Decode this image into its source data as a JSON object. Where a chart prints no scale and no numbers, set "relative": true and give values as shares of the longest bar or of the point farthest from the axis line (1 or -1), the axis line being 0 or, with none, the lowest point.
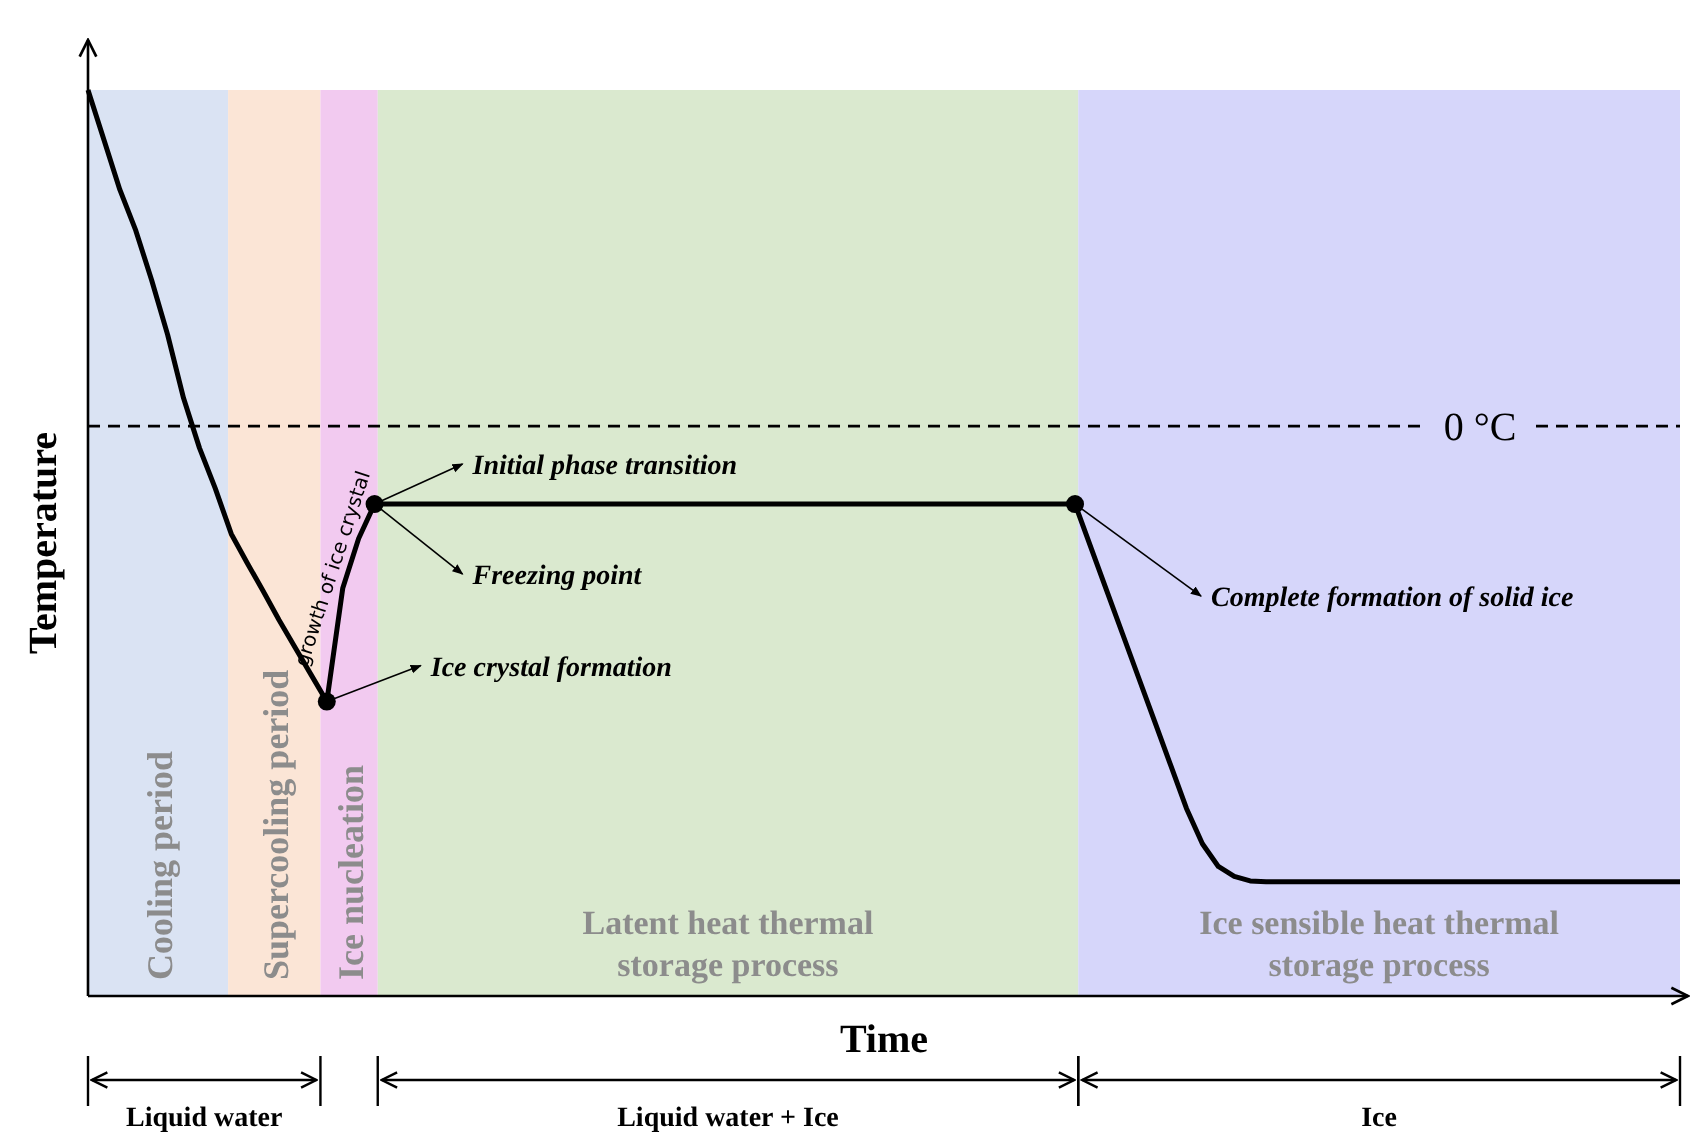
{
  "chart_data": {
    "type": "line",
    "relative": true,
    "xlabel": "Time",
    "ylabel": "Temperature",
    "categories": [
      null,
      null,
      null,
      null,
      null,
      null,
      null,
      null,
      null,
      null,
      null,
      null,
      null,
      null,
      null,
      null,
      null,
      null,
      null,
      null,
      null,
      null,
      null,
      null,
      null,
      null,
      null,
      null,
      null,
      null,
      null,
      null,
      null,
      null,
      null,
      null,
      null,
      null,
      null,
      null,
      null,
      null,
      null,
      null,
      null,
      null,
      null,
      null,
      null,
      null,
      null,
      null,
      null,
      null,
      null,
      null,
      null,
      null,
      null,
      null,
      null,
      null,
      null,
      null,
      null,
      null,
      null,
      null,
      null,
      null,
      null,
      null,
      null,
      null,
      null,
      null,
      null,
      null,
      null,
      null,
      null,
      null,
      null,
      null,
      null,
      null,
      null,
      null,
      null,
      null,
      null,
      null,
      null,
      null,
      null,
      null,
      null,
      null,
      null,
      null,
      null
    ],
    "series": [
      {
        "color": "#000000",
        "values": [
          1.0,
          0.945,
          0.89,
          0.845,
          0.79,
          0.73,
          0.66,
          0.605,
          0.56,
          0.51,
          0.478,
          0.447,
          0.415,
          0.385,
          0.355,
          0.325,
          0.45,
          0.505,
          0.543,
          0.543,
          0.543,
          0.543,
          0.543,
          0.543,
          0.543,
          0.543,
          0.543,
          0.543,
          0.543,
          0.543,
          0.543,
          0.543,
          0.543,
          0.543,
          0.543,
          0.543,
          0.543,
          0.543,
          0.543,
          0.543,
          0.543,
          0.543,
          0.543,
          0.543,
          0.543,
          0.543,
          0.543,
          0.543,
          0.543,
          0.543,
          0.543,
          0.543,
          0.543,
          0.543,
          0.543,
          0.543,
          0.543,
          0.543,
          0.543,
          0.543,
          0.543,
          0.543,
          0.543,
          0.495,
          0.447,
          0.399,
          0.351,
          0.303,
          0.255,
          0.207,
          0.168,
          0.143,
          0.132,
          0.127,
          0.126,
          0.126,
          0.126,
          0.126,
          0.126,
          0.126,
          0.126,
          0.126,
          0.126,
          0.126,
          0.126,
          0.126,
          0.126,
          0.126,
          0.126,
          0.126,
          0.126,
          0.126,
          0.126,
          0.126,
          0.126,
          0.126,
          0.126,
          0.126,
          0.126,
          0.126,
          0.126
        ]
      }
    ],
    "ref_lines": [
      {
        "axis": "y",
        "value": 0.629,
        "label": "0 °C",
        "line_style": "dashed"
      }
    ],
    "annotations": [
      "Initial phase transition",
      "Freezing point",
      "Ice crystal formation",
      "Complete formation of solid ice",
      "growth of ice crystal",
      "Cooling period",
      "Supercooling period",
      "Ice nucleation",
      "Latent heat thermal storage process",
      "Ice sensible heat thermal storage process",
      "Liquid water",
      "Liquid water + Ice",
      "Ice"
    ]
  }
}
